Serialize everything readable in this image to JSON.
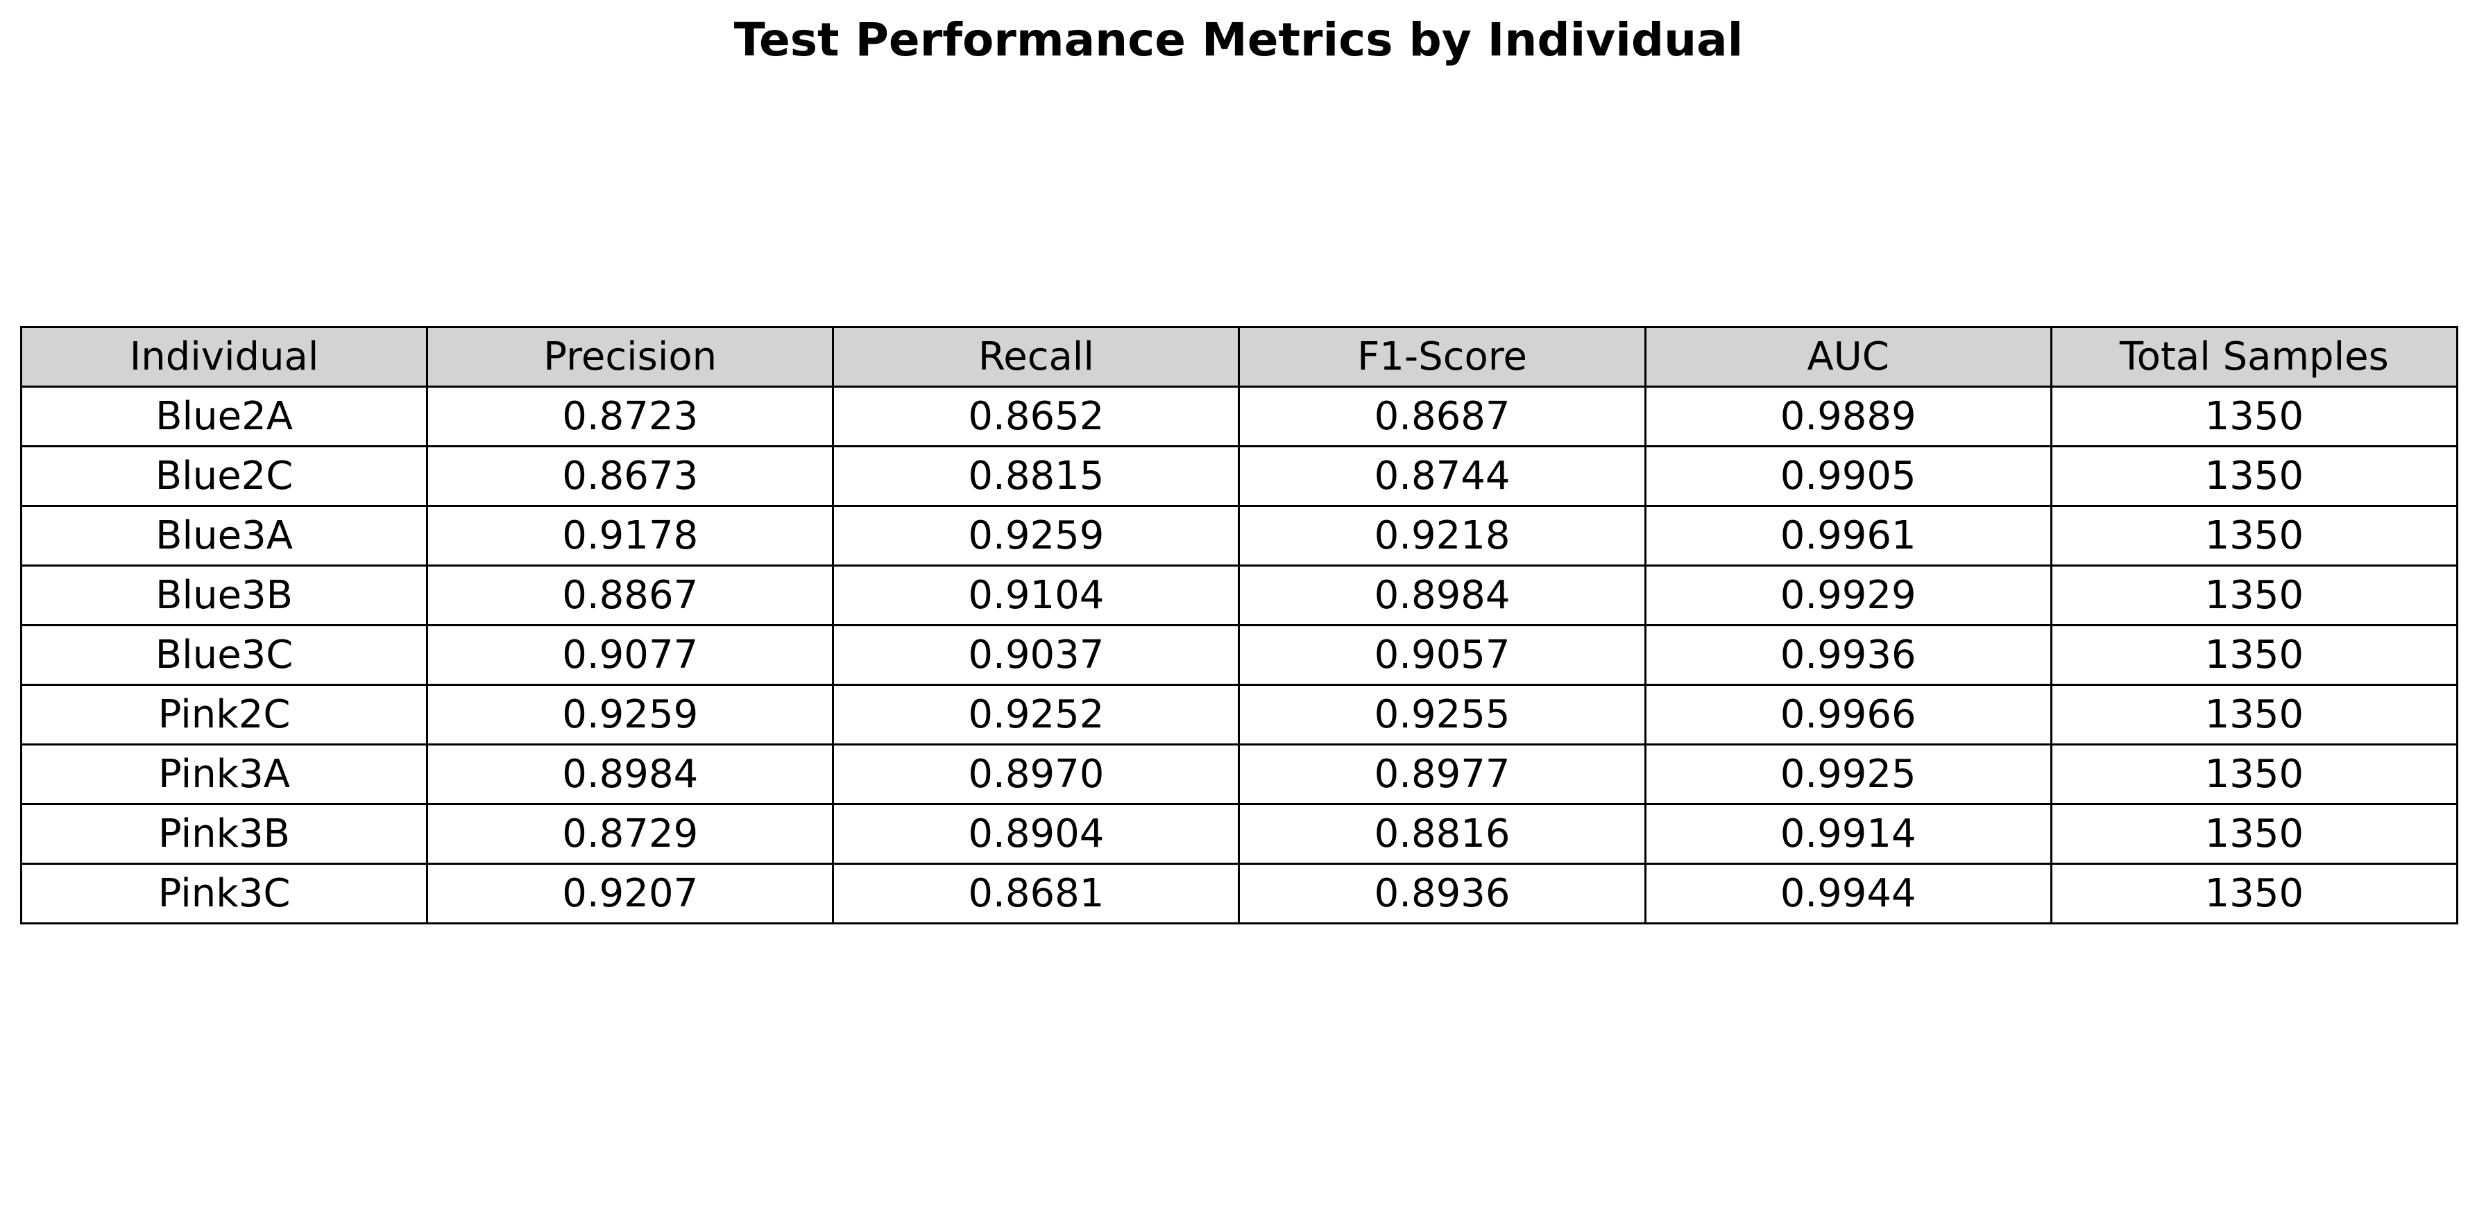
{
  "title": "Test Performance Metrics by Individual",
  "colors": {
    "header_background": "#d3d3d3",
    "cell_background": "#ffffff",
    "border": "#000000",
    "text": "#000000"
  },
  "chart_data": {
    "type": "table",
    "title": "Test Performance Metrics by Individual",
    "columns": [
      "Individual",
      "Precision",
      "Recall",
      "F1-Score",
      "AUC",
      "Total Samples"
    ],
    "rows": [
      [
        "Blue2A",
        "0.8723",
        "0.8652",
        "0.8687",
        "0.9889",
        "1350"
      ],
      [
        "Blue2C",
        "0.8673",
        "0.8815",
        "0.8744",
        "0.9905",
        "1350"
      ],
      [
        "Blue3A",
        "0.9178",
        "0.9259",
        "0.9218",
        "0.9961",
        "1350"
      ],
      [
        "Blue3B",
        "0.8867",
        "0.9104",
        "0.8984",
        "0.9929",
        "1350"
      ],
      [
        "Blue3C",
        "0.9077",
        "0.9037",
        "0.9057",
        "0.9936",
        "1350"
      ],
      [
        "Pink2C",
        "0.9259",
        "0.9252",
        "0.9255",
        "0.9966",
        "1350"
      ],
      [
        "Pink3A",
        "0.8984",
        "0.8970",
        "0.8977",
        "0.9925",
        "1350"
      ],
      [
        "Pink3B",
        "0.8729",
        "0.8904",
        "0.8816",
        "0.9914",
        "1350"
      ],
      [
        "Pink3C",
        "0.9207",
        "0.8681",
        "0.8936",
        "0.9944",
        "1350"
      ]
    ]
  }
}
